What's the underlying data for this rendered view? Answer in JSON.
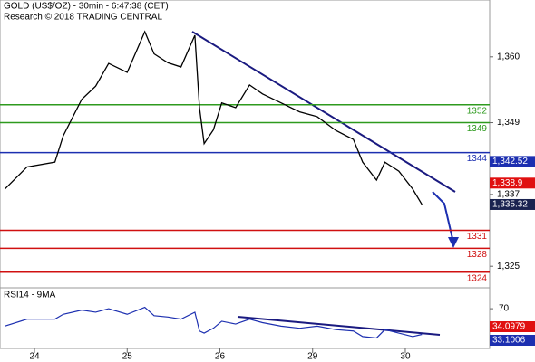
{
  "chart_data": {
    "type": "line",
    "title": "GOLD (US$/OZ) - 30min - 6:47:38 (CET)",
    "subtitle": "Research © 2018 TRADING CENTRAL",
    "x": [
      -0.32,
      -0.08,
      0.22,
      0.31,
      0.51,
      0.66,
      0.8,
      1.0,
      1.19,
      1.29,
      1.44,
      1.58,
      1.73,
      1.78,
      1.83,
      1.93,
      2.02,
      2.17,
      2.32,
      2.46,
      2.66,
      2.86,
      3.05,
      3.25,
      3.44,
      3.54,
      3.69,
      3.78,
      3.93,
      4.08,
      4.18
    ],
    "series": [
      {
        "name": "GOLD",
        "color": "#000000",
        "values": [
          1337.9,
          1341.6,
          1342.4,
          1346.8,
          1352.9,
          1355.1,
          1358.9,
          1357.4,
          1364.2,
          1360.5,
          1359,
          1358.3,
          1363.6,
          1351.5,
          1345.5,
          1347.8,
          1352.3,
          1351.5,
          1355.3,
          1353.8,
          1352.3,
          1350.8,
          1350,
          1347.7,
          1346.2,
          1342.4,
          1339.4,
          1342.4,
          1340.9,
          1337.9,
          1335.3
        ]
      }
    ],
    "xlim": [
      -0.372,
      4.91
    ],
    "xticks": [
      {
        "value": 0,
        "label": "24"
      },
      {
        "value": 1,
        "label": "25"
      },
      {
        "value": 2,
        "label": "26"
      },
      {
        "value": 3,
        "label": "29"
      },
      {
        "value": 4,
        "label": "30"
      }
    ],
    "ylim": [
      1321.4,
      1369.5
    ],
    "yticks": [
      {
        "value": 1360,
        "label": "1,360"
      },
      {
        "value": 1349,
        "label": "1,349"
      },
      {
        "value": 1337,
        "label": "1,337"
      },
      {
        "value": 1325,
        "label": "1,325"
      }
    ],
    "levels": [
      {
        "value": 1352,
        "color": "#2e9a1e"
      },
      {
        "value": 1349,
        "color": "#2e9a1e"
      },
      {
        "value": 1344,
        "color": "#1c2fb0"
      },
      {
        "value": 1331,
        "color": "#d01010"
      },
      {
        "value": 1328,
        "color": "#d01010"
      },
      {
        "value": 1324,
        "color": "#d01010"
      }
    ],
    "price_boxes": [
      {
        "value": 1342.52,
        "label": "1,342.52",
        "color": "#1c2fb0"
      },
      {
        "value": 1338.9,
        "label": "1,338.9",
        "color": "#e01010"
      },
      {
        "value": 1335.32,
        "label": "1,335.32",
        "color": "#1a2350"
      }
    ],
    "rsi": {
      "title": "RSI14 - 9MA",
      "color": "#1c2fb0",
      "ylim": [
        0,
        100
      ],
      "yticks": [
        70
      ],
      "values": [
        45,
        55,
        55,
        62,
        68,
        65,
        70,
        62,
        72,
        60,
        58,
        55,
        65,
        38,
        35,
        42,
        52,
        48,
        55,
        50,
        45,
        42,
        45,
        40,
        38,
        30,
        28,
        40,
        35,
        30,
        33.1
      ],
      "boxes": [
        {
          "value": 34.0979,
          "label": "34.0979",
          "color": "#e01010"
        },
        {
          "value": 33.1006,
          "label": "33.1006",
          "color": "#1c2fb0"
        }
      ]
    }
  }
}
